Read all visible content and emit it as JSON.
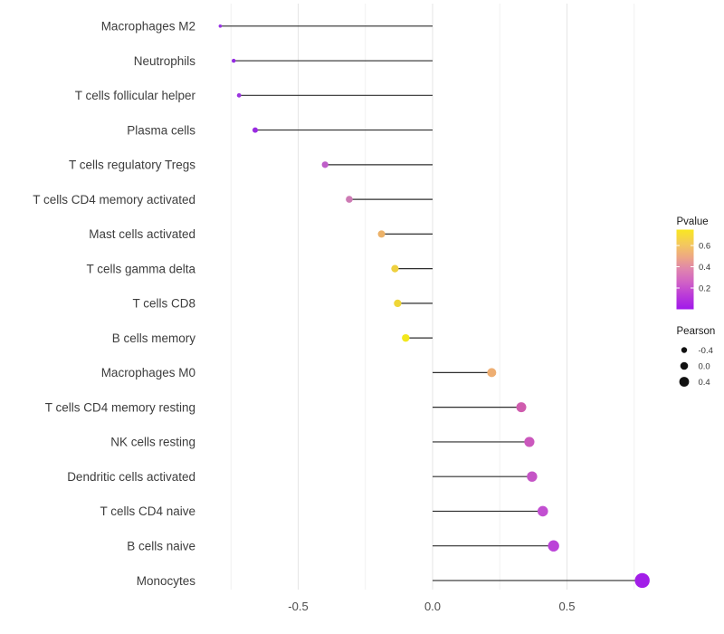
{
  "chart_data": {
    "type": "scatter",
    "variant": "lollipop",
    "title": "",
    "xlabel": "",
    "ylabel": "",
    "xlim": [
      -0.87,
      0.86
    ],
    "grid": "vertical-only",
    "grid_values": [
      -0.75,
      -0.5,
      -0.25,
      0,
      0.25,
      0.5,
      0.75
    ],
    "x_ticks": [
      {
        "label": "-0.5",
        "value": -0.5
      },
      {
        "label": "0.0",
        "value": 0.0
      },
      {
        "label": "0.5",
        "value": 0.5
      }
    ],
    "categories": [
      "Macrophages M2",
      "Neutrophils",
      "T cells follicular helper",
      "Plasma cells",
      "T cells regulatory  Tregs",
      "T cells CD4 memory activated",
      "Mast cells activated",
      "T cells gamma delta",
      "T cells CD8",
      "B cells memory",
      "Macrophages M0",
      "T cells CD4 memory resting",
      "NK cells resting",
      "Dendritic cells activated",
      "T cells CD4 naive",
      "B cells naive",
      "Monocytes"
    ],
    "values": [
      -0.79,
      -0.74,
      -0.72,
      -0.66,
      -0.4,
      -0.31,
      -0.19,
      -0.14,
      -0.13,
      -0.1,
      0.22,
      0.33,
      0.36,
      0.37,
      0.41,
      0.45,
      0.78
    ],
    "point_colors": [
      "#9832e4",
      "#9429e2",
      "#9c35e0",
      "#992be1",
      "#bf5ec9",
      "#cd7ab4",
      "#ecb269",
      "#eed03f",
      "#efd637",
      "#f2e71c",
      "#eeae72",
      "#cf5cae",
      "#cb58bd",
      "#c554c6",
      "#c24fd1",
      "#bb42d8",
      "#a21ee8"
    ],
    "point_radii": [
      1.8,
      2.2,
      2.4,
      3.0,
      3.6,
      3.8,
      4.0,
      4.1,
      4.15,
      4.2,
      5.0,
      5.5,
      5.6,
      5.7,
      5.8,
      6.2,
      8.2
    ],
    "stem_color": "#2e2e2e",
    "legend_pvalue": {
      "title": "Pvalue",
      "position": "right",
      "gradient": [
        {
          "pos": 0.0,
          "color": "#f9e721"
        },
        {
          "pos": 0.18,
          "color": "#f4c95c"
        },
        {
          "pos": 0.35,
          "color": "#eda685"
        },
        {
          "pos": 0.5,
          "color": "#df84ae"
        },
        {
          "pos": 0.65,
          "color": "#d264c4"
        },
        {
          "pos": 0.82,
          "color": "#bb3cd8"
        },
        {
          "pos": 1.0,
          "color": "#a018ea"
        }
      ],
      "ticks": [
        {
          "label": "0.6",
          "rel": 0.2
        },
        {
          "label": "0.4",
          "rel": 0.466
        },
        {
          "label": "0.2",
          "rel": 0.733
        }
      ]
    },
    "legend_pearson": {
      "title": "Pearson",
      "position": "right",
      "entries": [
        {
          "label": "-0.4",
          "r": 3.2
        },
        {
          "label": "0.0",
          "r": 4.3
        },
        {
          "label": "0.4",
          "r": 5.4
        }
      ],
      "key_color": "#111111"
    },
    "colors": {
      "grid_major": "#e5e5e5",
      "grid_minor": "#f1f1f1",
      "axis_text": "#4b4b4b",
      "category_text": "#3d3d3d",
      "legend_title_text": "#1a1a1a",
      "legend_tick_text": "#333333",
      "background": "#ffffff"
    }
  }
}
